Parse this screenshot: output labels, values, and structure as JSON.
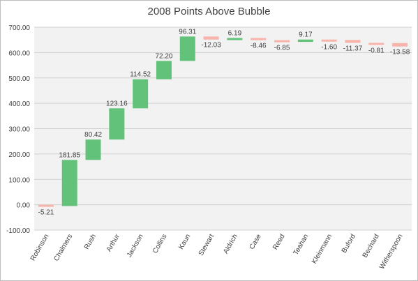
{
  "chart_data": {
    "type": "bar",
    "subtype": "waterfall",
    "title": "2008 Points Above Bubble",
    "xlabel": "",
    "ylabel": "",
    "ylim": [
      -100,
      700
    ],
    "y_tick_step": 100,
    "y_tick_labels": [
      "-100.00",
      "0.00",
      "100.00",
      "200.00",
      "300.00",
      "400.00",
      "500.00",
      "600.00",
      "700.00"
    ],
    "grid": true,
    "legend": "none",
    "categories": [
      "Robinson",
      "Chalmers",
      "Rush",
      "Arthur",
      "Jackson",
      "Collins",
      "Kaun",
      "Stewart",
      "Aldrich",
      "Case",
      "Reed",
      "Teahan",
      "Kleinmann",
      "Buford",
      "Bechard",
      "Witherspoon"
    ],
    "values": [
      -5.21,
      181.85,
      80.42,
      123.16,
      114.52,
      72.2,
      96.31,
      -12.03,
      6.19,
      -8.46,
      -6.85,
      9.17,
      -1.6,
      -11.37,
      -0.81,
      -13.58
    ],
    "value_labels": [
      "-5.21",
      "181.85",
      "80.42",
      "123.16",
      "114.52",
      "72.20",
      "96.31",
      "-12.03",
      "6.19",
      "-8.46",
      "-6.85",
      "9.17",
      "-1.60",
      "-11.37",
      "-0.81",
      "-13.58"
    ],
    "colors": {
      "increase": "#63c27a",
      "decrease": "#f8b3aa",
      "plot_background": "#f2f2f2",
      "gridline": "#d0d0d0",
      "text": "#404040"
    }
  }
}
